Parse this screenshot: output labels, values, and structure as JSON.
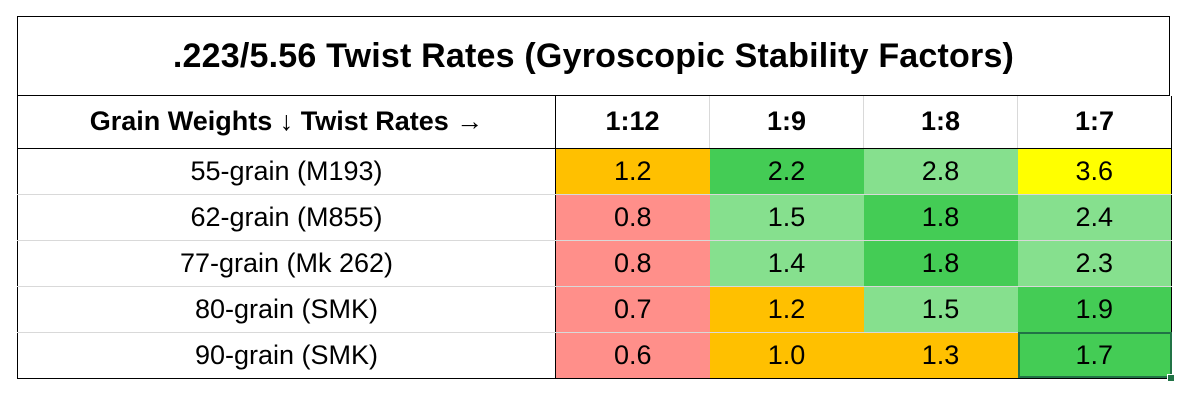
{
  "title": ".223/5.56 Twist Rates (Gyroscopic Stability Factors)",
  "header_label": "Grain Weights ↓ Twist Rates →",
  "columns": [
    "1:12",
    "1:9",
    "1:8",
    "1:7"
  ],
  "rows": [
    {
      "label": "55-grain (M193)",
      "values": [
        "1.2",
        "2.2",
        "2.8",
        "3.6"
      ],
      "colors": [
        "#ffc000",
        "#44cc55",
        "#86e08e",
        "#ffff00"
      ]
    },
    {
      "label": "62-grain (M855)",
      "values": [
        "0.8",
        "1.5",
        "1.8",
        "2.4"
      ],
      "colors": [
        "#ff8f8a",
        "#86e08e",
        "#44cc55",
        "#86e08e"
      ]
    },
    {
      "label": "77-grain (Mk 262)",
      "values": [
        "0.8",
        "1.4",
        "1.8",
        "2.3"
      ],
      "colors": [
        "#ff8f8a",
        "#86e08e",
        "#44cc55",
        "#86e08e"
      ]
    },
    {
      "label": "80-grain (SMK)",
      "values": [
        "0.7",
        "1.2",
        "1.5",
        "1.9"
      ],
      "colors": [
        "#ff8f8a",
        "#ffc000",
        "#86e08e",
        "#44cc55"
      ]
    },
    {
      "label": "90-grain (SMK)",
      "values": [
        "0.6",
        "1.0",
        "1.3",
        "1.7"
      ],
      "colors": [
        "#ff8f8a",
        "#ffc000",
        "#ffc000",
        "#44cc55"
      ]
    }
  ],
  "selected_cell": {
    "row": 4,
    "col": 3
  }
}
